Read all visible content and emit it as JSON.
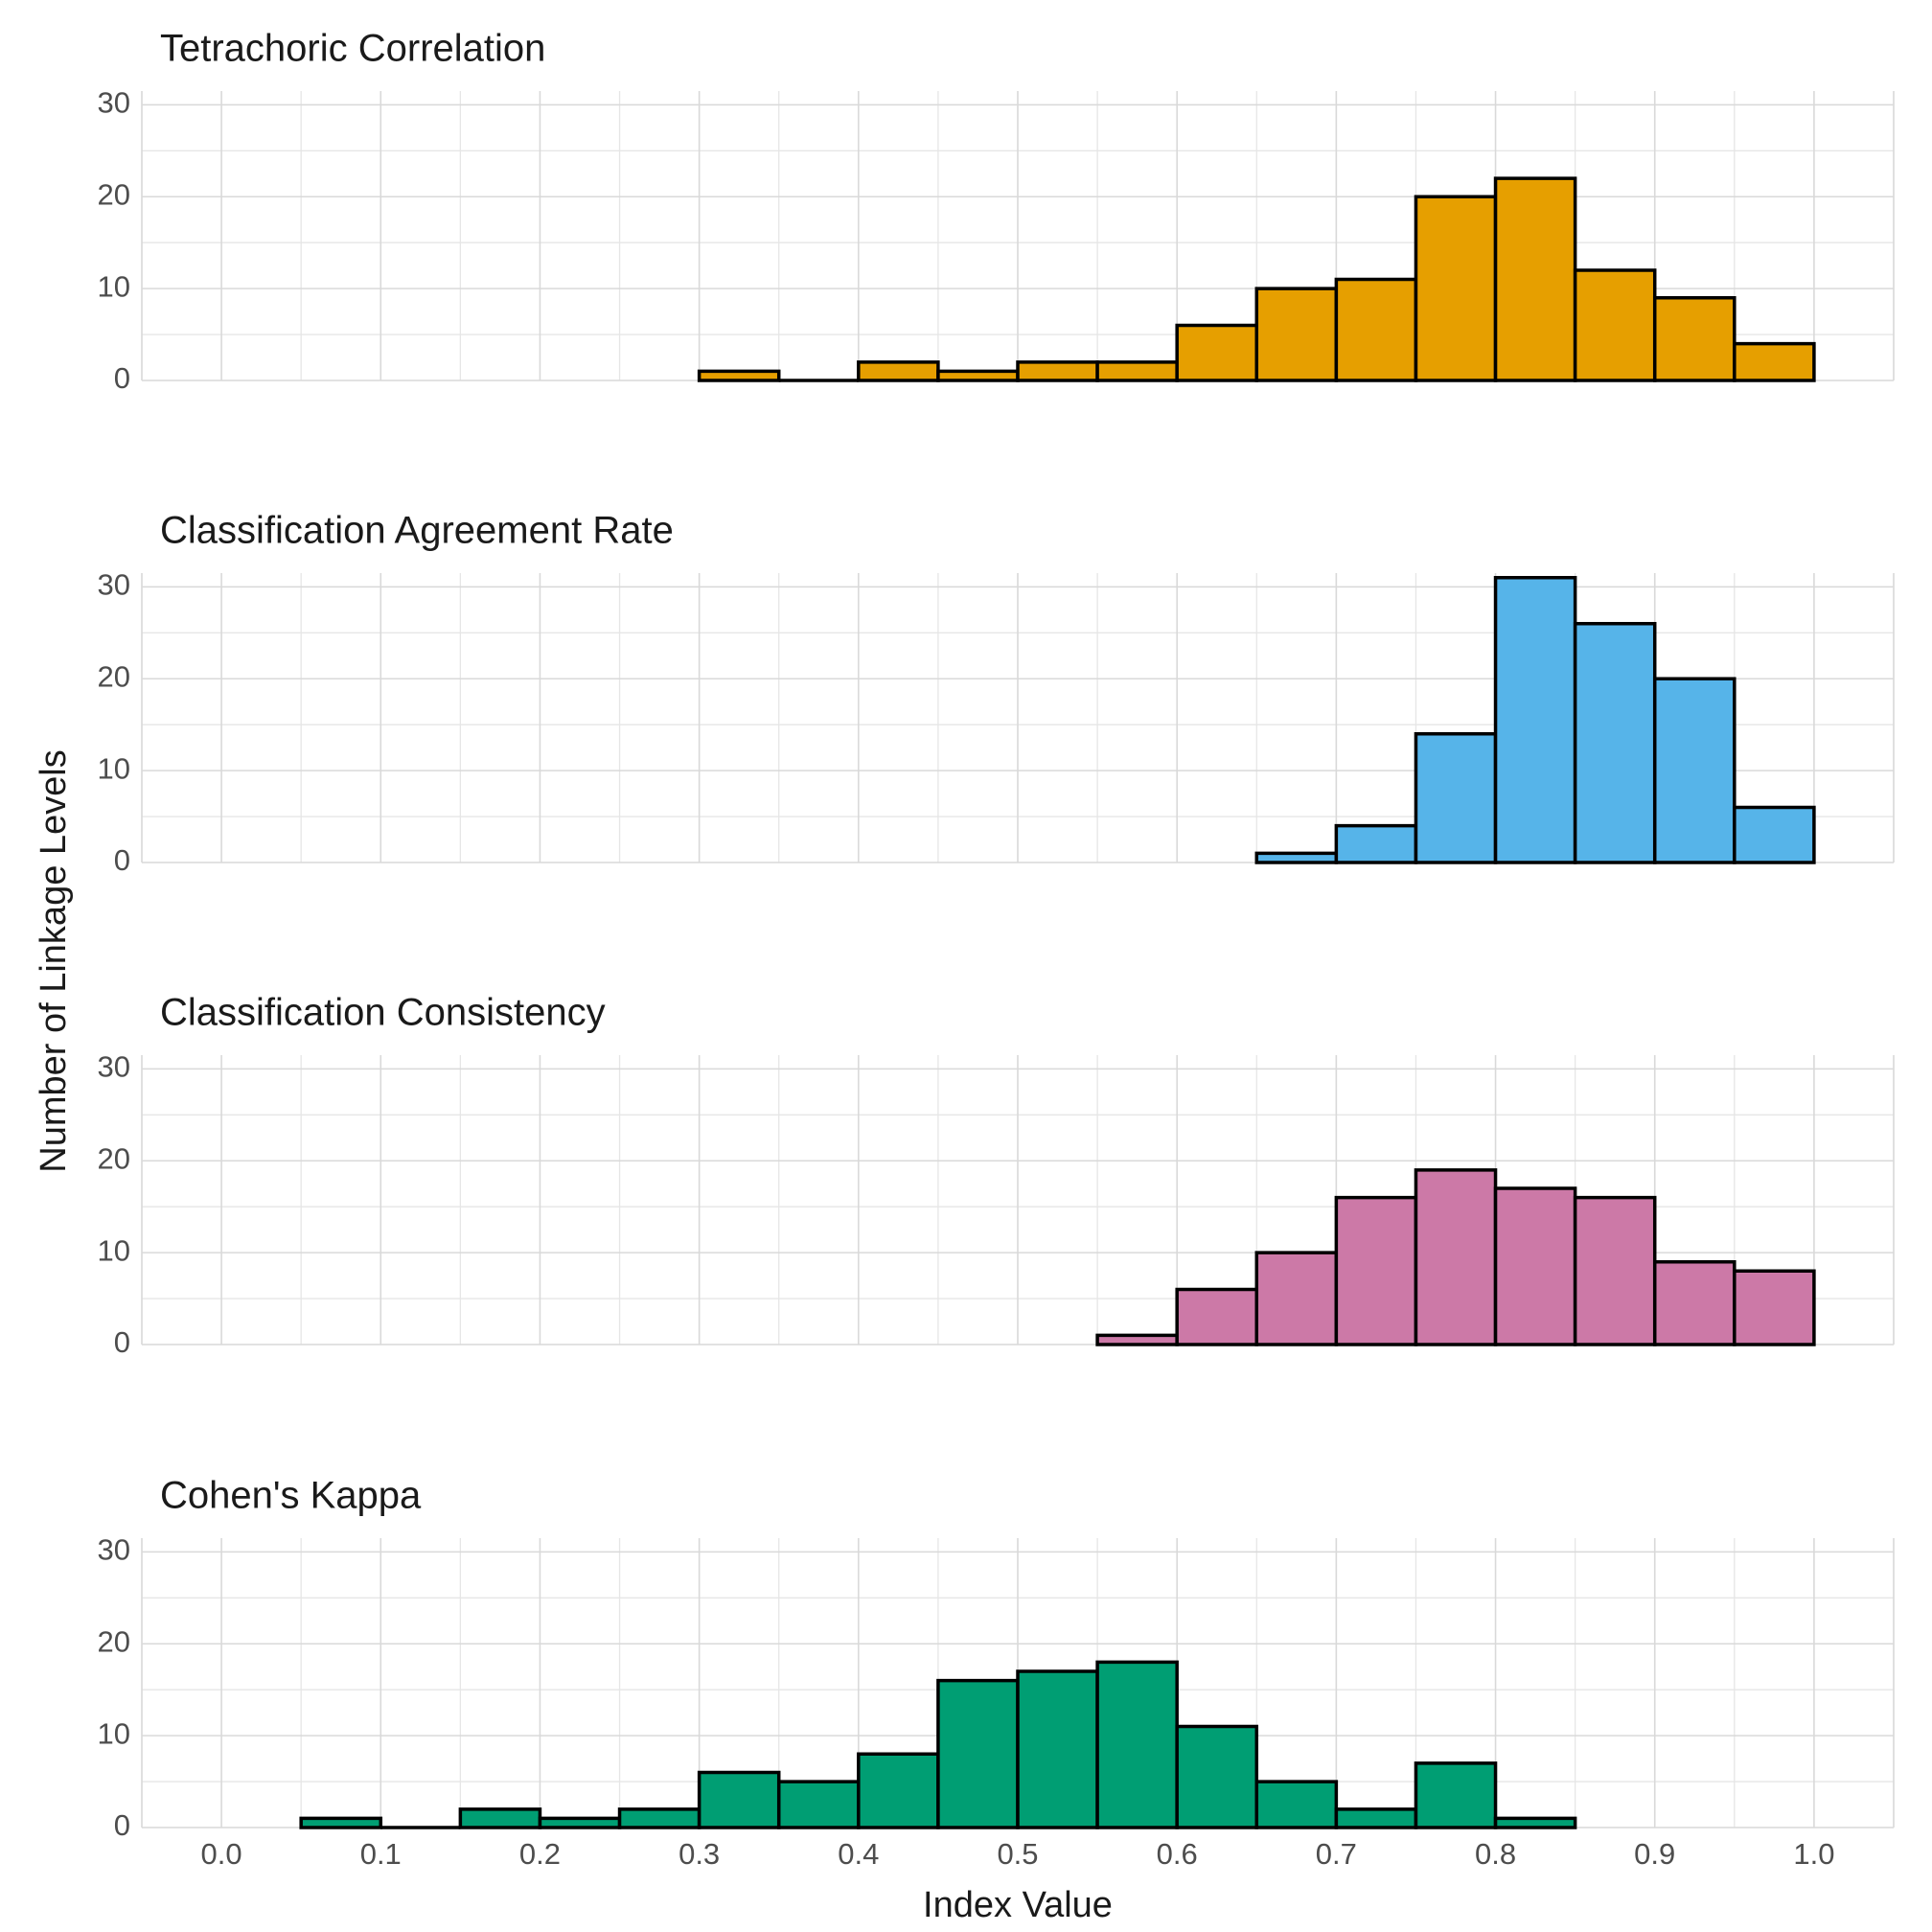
{
  "chart_data": [
    {
      "type": "histogram",
      "title": "Tetrachoric Correlation",
      "color": "#E69F00",
      "bins": [
        0.3,
        0.35,
        0.4,
        0.45,
        0.5,
        0.55,
        0.6,
        0.65,
        0.7,
        0.75,
        0.8,
        0.85,
        0.9,
        0.95,
        1.0
      ],
      "values": [
        1,
        0,
        2,
        1,
        2,
        2,
        6,
        10,
        11,
        20,
        22,
        12,
        9,
        4
      ],
      "xlim": [
        -0.05,
        1.05
      ],
      "xticks": [
        0,
        0.1,
        0.2,
        0.3,
        0.4,
        0.5,
        0.6,
        0.7,
        0.8,
        0.9,
        1
      ],
      "ylim": [
        0,
        31.5
      ],
      "yticks": [
        0,
        10,
        20,
        30
      ],
      "grid": true
    },
    {
      "type": "histogram",
      "title": "Classification Agreement Rate",
      "color": "#56B4E9",
      "bins": [
        0.65,
        0.7,
        0.75,
        0.8,
        0.85,
        0.9,
        0.95,
        1.0
      ],
      "values": [
        1,
        4,
        14,
        31,
        26,
        20,
        6
      ],
      "xlim": [
        -0.05,
        1.05
      ],
      "xticks": [
        0,
        0.1,
        0.2,
        0.3,
        0.4,
        0.5,
        0.6,
        0.7,
        0.8,
        0.9,
        1
      ],
      "ylim": [
        0,
        31.5
      ],
      "yticks": [
        0,
        10,
        20,
        30
      ],
      "grid": true
    },
    {
      "type": "histogram",
      "title": "Classification Consistency",
      "color": "#CC79A7",
      "bins": [
        0.55,
        0.6,
        0.65,
        0.7,
        0.75,
        0.8,
        0.85,
        0.9,
        0.95,
        1.0
      ],
      "values": [
        1,
        6,
        10,
        16,
        19,
        17,
        16,
        9,
        8
      ],
      "xlim": [
        -0.05,
        1.05
      ],
      "xticks": [
        0,
        0.1,
        0.2,
        0.3,
        0.4,
        0.5,
        0.6,
        0.7,
        0.8,
        0.9,
        1
      ],
      "ylim": [
        0,
        31.5
      ],
      "yticks": [
        0,
        10,
        20,
        30
      ],
      "grid": true
    },
    {
      "type": "histogram",
      "title": "Cohen's Kappa",
      "color": "#009E73",
      "bins": [
        0.05,
        0.1,
        0.15,
        0.2,
        0.25,
        0.3,
        0.35,
        0.4,
        0.45,
        0.5,
        0.55,
        0.6,
        0.65,
        0.7,
        0.75,
        0.8,
        0.85
      ],
      "values": [
        1,
        0,
        2,
        1,
        2,
        6,
        5,
        8,
        16,
        17,
        18,
        11,
        5,
        2,
        7,
        1
      ],
      "xlim": [
        -0.05,
        1.05
      ],
      "xticks": [
        {
          "value": 0,
          "label": "0.0"
        },
        0.1,
        0.2,
        0.3,
        0.4,
        0.5,
        0.6,
        0.7,
        0.8,
        0.9,
        {
          "value": 1,
          "label": "1.0"
        }
      ],
      "ylim": [
        0,
        31.5
      ],
      "yticks": [
        0,
        10,
        20,
        30
      ],
      "grid": true
    }
  ],
  "xlabel": "Index Value",
  "ylabel": "Number of Linkage Levels"
}
